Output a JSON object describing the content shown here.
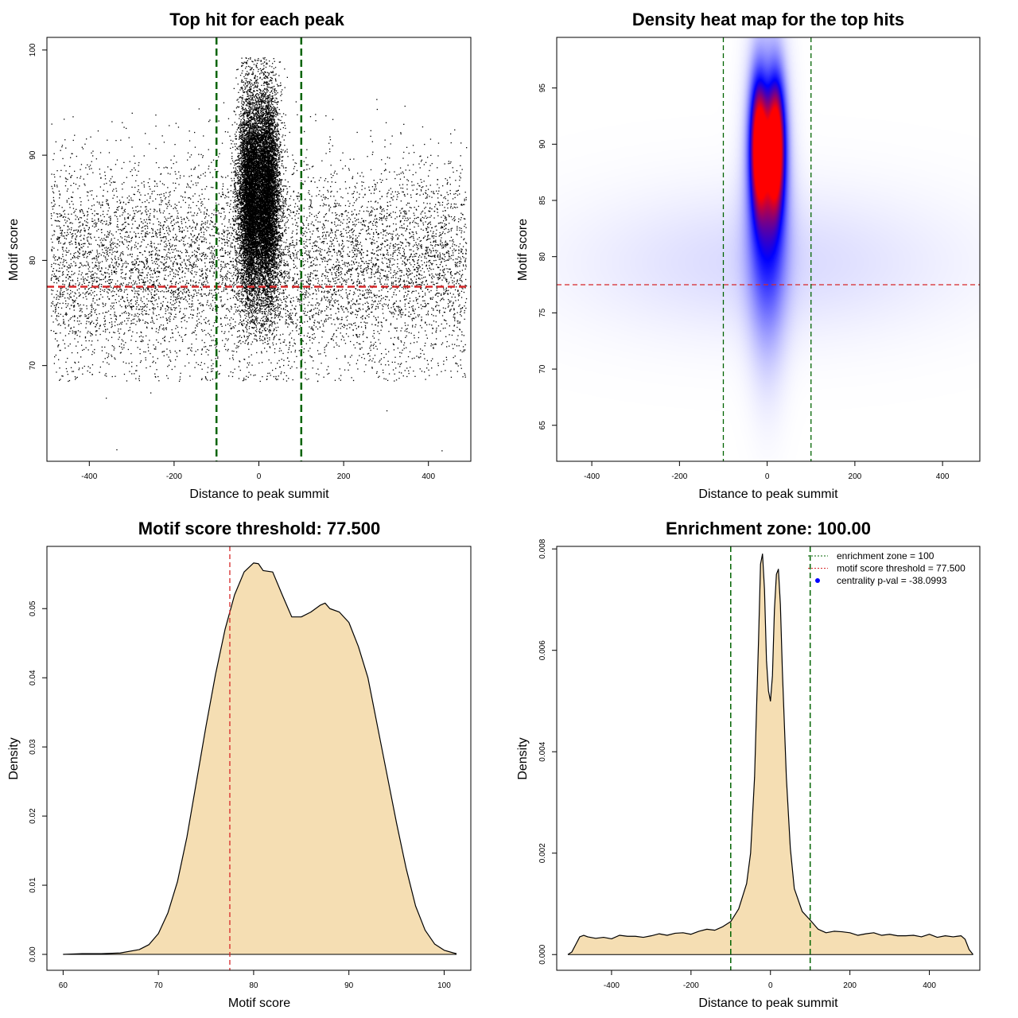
{
  "colors": {
    "threshold_line": "#d62728",
    "zone_line": "#006400",
    "fill": "#f5deb3",
    "heat_low": "#ffffff",
    "heat_mid": "#0000ff",
    "heat_high": "#ff0000",
    "legend_dot": "#0000ff"
  },
  "chart_data": [
    {
      "id": "scatter",
      "type": "scatter",
      "title": "Top hit for each peak",
      "xlabel": "Distance to peak summit",
      "ylabel": "Motif score",
      "xlim": [
        -500,
        500
      ],
      "ylim": [
        60.9,
        101.2
      ],
      "xticks": [
        -400,
        -200,
        0,
        200,
        400
      ],
      "yticks": [
        70,
        80,
        90,
        100
      ],
      "hlines": [
        77.5
      ],
      "vlines": [
        -100,
        100
      ],
      "n_background_points": 8000,
      "n_central_points": 14000,
      "background_score_mean": 79.5,
      "background_score_sd": 5.0,
      "central_peak_offsets": [
        -20,
        20
      ],
      "central_offset_sd": 15,
      "central_score_mean": 86,
      "central_score_sd": 5,
      "outliers": [
        {
          "x": -335,
          "y": 62.0
        },
        {
          "x": 432,
          "y": 61.9
        },
        {
          "x": -360,
          "y": 66.9
        },
        {
          "x": 302,
          "y": 65.7
        },
        {
          "x": -255,
          "y": 67.4
        }
      ]
    },
    {
      "id": "heatmap",
      "type": "heatmap",
      "title": "Density heat map for the top hits",
      "xlabel": "Distance to peak summit",
      "ylabel": "Motif score",
      "xlim": [
        -480,
        485
      ],
      "ylim": [
        61.8,
        99.5
      ],
      "xticks": [
        -400,
        -200,
        0,
        200,
        400
      ],
      "yticks": [
        65,
        70,
        75,
        80,
        85,
        90,
        95
      ],
      "hlines": [
        77.5
      ],
      "vlines": [
        -100,
        100
      ],
      "hotspots": [
        {
          "x": -20,
          "y": 90,
          "sx": 14,
          "sy": 4,
          "w": 1.0
        },
        {
          "x": 20,
          "y": 90,
          "sx": 14,
          "sy": 4,
          "w": 1.0
        },
        {
          "x": 0,
          "y": 85,
          "sx": 30,
          "sy": 8,
          "w": 0.55
        },
        {
          "x": 0,
          "y": 79.5,
          "sx": 300,
          "sy": 4.5,
          "w": 0.08
        }
      ]
    },
    {
      "id": "score-density",
      "type": "area",
      "title": "Motif score threshold: 77.500",
      "xlabel": "Motif score",
      "ylabel": "Density",
      "xlim": [
        58.3,
        102.8
      ],
      "ylim": [
        -0.0023,
        0.059
      ],
      "xticks": [
        60,
        70,
        80,
        90,
        100
      ],
      "yticks": [
        0.0,
        0.01,
        0.02,
        0.03,
        0.04,
        0.05
      ],
      "ytick_labels": [
        "0.00",
        "0.01",
        "0.02",
        "0.03",
        "0.04",
        "0.05"
      ],
      "vlines": [
        77.5
      ],
      "x": [
        60,
        62,
        64,
        66,
        68,
        69,
        70,
        71,
        72,
        73,
        74,
        75,
        76,
        77,
        78,
        79,
        80,
        80.5,
        81,
        82,
        83,
        84,
        85,
        86,
        87,
        87.5,
        88,
        89,
        90,
        91,
        92,
        93,
        94,
        95,
        96,
        97,
        98,
        99,
        100,
        101,
        101.3
      ],
      "y": [
        0.0,
        0.0001,
        0.0001,
        0.0002,
        0.0007,
        0.0014,
        0.003,
        0.006,
        0.0105,
        0.017,
        0.025,
        0.033,
        0.0405,
        0.047,
        0.052,
        0.0553,
        0.0566,
        0.0565,
        0.0555,
        0.0553,
        0.052,
        0.0488,
        0.0488,
        0.0495,
        0.0505,
        0.0508,
        0.05,
        0.0495,
        0.048,
        0.0445,
        0.04,
        0.033,
        0.026,
        0.019,
        0.0125,
        0.007,
        0.0035,
        0.0015,
        0.0006,
        0.0002,
        0.0001
      ]
    },
    {
      "id": "distance-density",
      "type": "area",
      "title": "Enrichment zone: 100.00",
      "xlabel": "Distance to peak summit",
      "ylabel": "Density",
      "xlim": [
        -538,
        527
      ],
      "ylim": [
        -0.00031,
        0.00805
      ],
      "xticks": [
        -400,
        -200,
        0,
        200,
        400
      ],
      "yticks": [
        0.0,
        0.002,
        0.004,
        0.006,
        0.008
      ],
      "ytick_labels": [
        "0.000",
        "0.002",
        "0.004",
        "0.006",
        "0.008"
      ],
      "vlines": [
        -100,
        100
      ],
      "x": [
        -510,
        -500,
        -490,
        -480,
        -470,
        -460,
        -440,
        -420,
        -400,
        -380,
        -360,
        -340,
        -320,
        -300,
        -280,
        -260,
        -240,
        -220,
        -200,
        -180,
        -160,
        -140,
        -120,
        -100,
        -80,
        -60,
        -50,
        -40,
        -30,
        -25,
        -20,
        -15,
        -10,
        -5,
        0,
        5,
        10,
        15,
        20,
        25,
        30,
        40,
        50,
        60,
        80,
        100,
        120,
        140,
        160,
        180,
        200,
        220,
        240,
        260,
        280,
        300,
        320,
        340,
        360,
        380,
        400,
        420,
        440,
        460,
        470,
        480,
        490,
        500,
        510
      ],
      "y": [
        0.0,
        5e-05,
        0.0002,
        0.00035,
        0.00038,
        0.00035,
        0.00032,
        0.00034,
        0.00031,
        0.00038,
        0.00036,
        0.00036,
        0.00034,
        0.00037,
        0.00041,
        0.00038,
        0.00042,
        0.00043,
        0.0004,
        0.00046,
        0.0005,
        0.00048,
        0.00055,
        0.00065,
        0.0009,
        0.0014,
        0.002,
        0.0035,
        0.0062,
        0.0077,
        0.0079,
        0.0072,
        0.0058,
        0.0052,
        0.005,
        0.0055,
        0.0068,
        0.0075,
        0.0076,
        0.0069,
        0.0056,
        0.0035,
        0.0021,
        0.0013,
        0.00085,
        0.00068,
        0.0005,
        0.00043,
        0.00046,
        0.00045,
        0.00043,
        0.00038,
        0.00041,
        0.00043,
        0.00038,
        0.0004,
        0.00037,
        0.00037,
        0.00038,
        0.00035,
        0.0004,
        0.00034,
        0.00037,
        0.00035,
        0.00036,
        0.00037,
        0.0003,
        0.0001,
        0.0
      ],
      "legend": [
        {
          "label": "enrichment zone = 100",
          "kind": "line",
          "color": "#006400"
        },
        {
          "label": "motif score threshold = 77.500",
          "kind": "line",
          "color": "#d62728"
        },
        {
          "label": "centrality p-val = -38.0993",
          "kind": "dot",
          "color": "#0000ff"
        }
      ],
      "legend_position": "top-right"
    }
  ]
}
